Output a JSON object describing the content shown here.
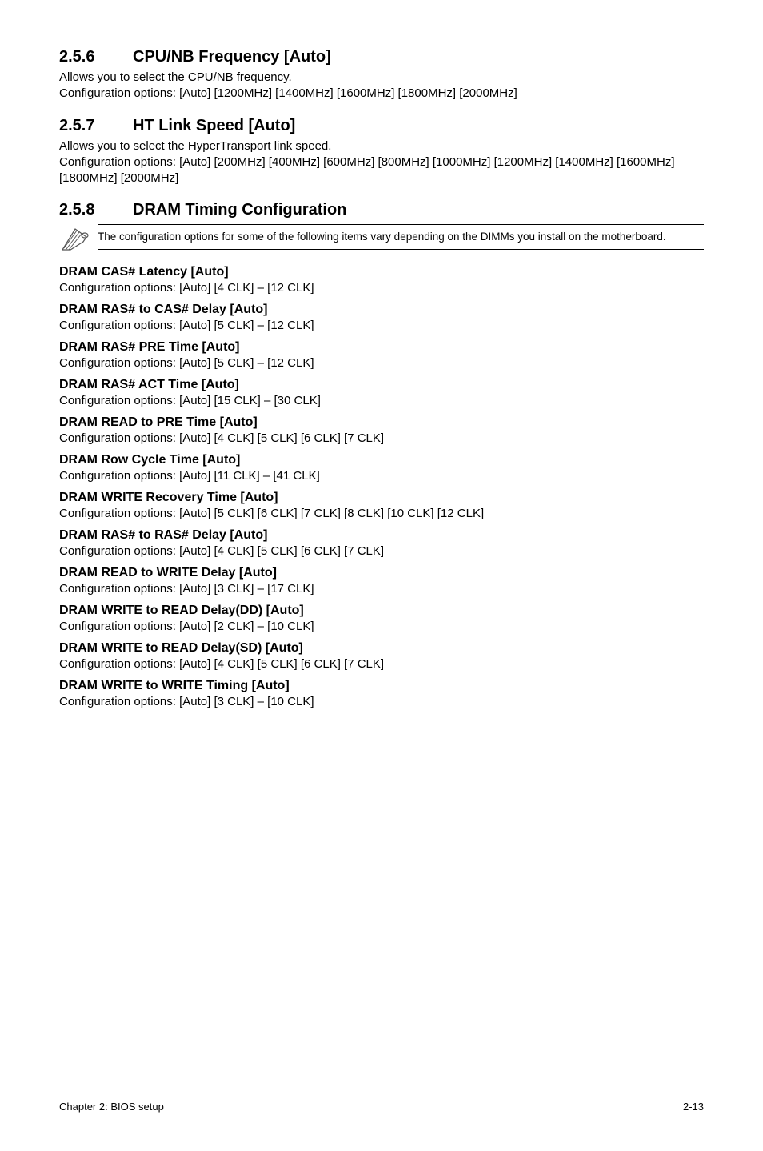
{
  "s256": {
    "num": "2.5.6",
    "title": "CPU/NB Frequency [Auto]",
    "p1": "Allows you to select the CPU/NB frequency.",
    "p2": "Configuration options: [Auto] [1200MHz] [1400MHz] [1600MHz] [1800MHz] [2000MHz]"
  },
  "s257": {
    "num": "2.5.7",
    "title": "HT Link Speed [Auto]",
    "p1": "Allows you to select the HyperTransport link speed.",
    "p2": "Configuration options: [Auto] [200MHz] [400MHz] [600MHz] [800MHz] [1000MHz] [1200MHz] [1400MHz] [1600MHz] [1800MHz] [2000MHz]"
  },
  "s258": {
    "num": "2.5.8",
    "title": "DRAM Timing Configuration",
    "note": "The configuration options for some of the following items vary depending on the DIMMs you install on the motherboard."
  },
  "items": [
    {
      "h": "DRAM CAS# Latency [Auto]",
      "o": "Configuration options: [Auto] [4 CLK] – [12 CLK]"
    },
    {
      "h": "DRAM RAS# to CAS# Delay [Auto]",
      "o": "Configuration options: [Auto] [5 CLK] – [12 CLK]"
    },
    {
      "h": "DRAM RAS# PRE Time [Auto]",
      "o": "Configuration options: [Auto] [5 CLK] – [12 CLK]"
    },
    {
      "h": "DRAM RAS# ACT Time [Auto]",
      "o": "Configuration options: [Auto] [15 CLK] – [30 CLK]"
    },
    {
      "h": "DRAM READ to PRE Time [Auto]",
      "o": "Configuration options: [Auto] [4 CLK] [5 CLK] [6 CLK] [7 CLK]"
    },
    {
      "h": "DRAM Row Cycle Time [Auto]",
      "o": "Configuration options: [Auto] [11 CLK] – [41 CLK]"
    },
    {
      "h": "DRAM WRITE Recovery Time [Auto]",
      "o": "Configuration options: [Auto] [5 CLK] [6 CLK] [7 CLK] [8 CLK] [10 CLK] [12 CLK]"
    },
    {
      "h": "DRAM RAS# to RAS# Delay [Auto]",
      "o": "Configuration options: [Auto] [4 CLK] [5 CLK] [6 CLK] [7 CLK]"
    },
    {
      "h": "DRAM READ to WRITE Delay [Auto]",
      "o": "Configuration options: [Auto] [3 CLK] – [17 CLK]"
    },
    {
      "h": "DRAM WRITE to READ Delay(DD) [Auto]",
      "o": "Configuration options: [Auto] [2 CLK] – [10 CLK]"
    },
    {
      "h": "DRAM WRITE to READ Delay(SD) [Auto]",
      "o": "Configuration options: [Auto] [4 CLK] [5 CLK] [6 CLK] [7 CLK]"
    },
    {
      "h": "DRAM WRITE to WRITE Timing [Auto]",
      "o": "Configuration options: [Auto] [3 CLK] – [10 CLK]"
    }
  ],
  "footer": {
    "left": "Chapter 2: BIOS setup",
    "right": "2-13"
  }
}
